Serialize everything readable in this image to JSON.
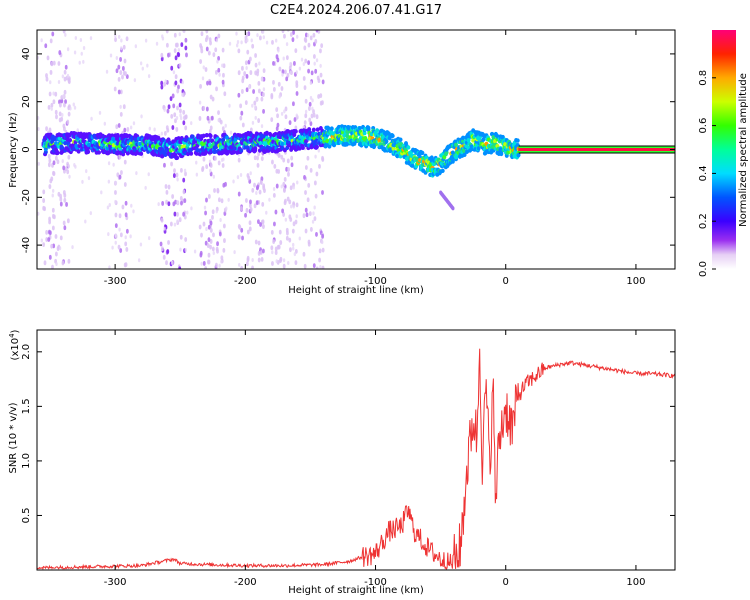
{
  "title": "C2E4.2024.206.07.41.G17",
  "chart_data": [
    {
      "type": "heatmap",
      "xlabel": "Height of straight line (km)",
      "ylabel": "Frequency (Hz)",
      "xlim": [
        -360,
        130
      ],
      "ylim": [
        -50,
        50
      ],
      "xticks": [
        -300,
        -200,
        -100,
        0,
        100
      ],
      "yticks": [
        -40,
        -20,
        0,
        20,
        40
      ],
      "colorbar": {
        "label": "Normalized spectral amplitude",
        "range": [
          0.0,
          1.0
        ],
        "ticks": [
          0.0,
          0.2,
          0.4,
          0.6,
          0.8
        ]
      },
      "ridge": {
        "x": [
          -355,
          -330,
          -300,
          -275,
          -262,
          -255,
          -250,
          -240,
          -220,
          -200,
          -180,
          -160,
          -140,
          -120,
          -100,
          -90,
          -80,
          -70,
          -60,
          -55,
          -50,
          -45,
          -40,
          -35,
          -30,
          -25,
          -20,
          -15,
          -10,
          -5,
          0,
          5,
          10
        ],
        "y": [
          2,
          3,
          2,
          2,
          1,
          0,
          1,
          2,
          2,
          3,
          3,
          4,
          5,
          6,
          5,
          3,
          0,
          -4,
          -6,
          -8,
          -6,
          -3,
          -1,
          1,
          2,
          4,
          3,
          2,
          3,
          2,
          1,
          0,
          0
        ]
      },
      "tone_line": {
        "x_start": 10,
        "x_end": 130,
        "y": 0
      },
      "tail": {
        "x": [
          -50,
          -40
        ],
        "y": [
          -18,
          -25
        ]
      }
    },
    {
      "type": "line",
      "xlabel": "Height of straight line (km)",
      "ylabel": "SNR (10 * v/v)",
      "y_exponent": "(x10",
      "y_exponent_power": "4",
      "xlim": [
        -360,
        130
      ],
      "ylim": [
        0,
        2.2
      ],
      "xticks": [
        -300,
        -200,
        -100,
        0,
        100
      ],
      "yticks": [
        0.5,
        1.0,
        1.5,
        2.0
      ],
      "ytick_labels": [
        "0.5",
        "1.0",
        "1.5",
        "2.0"
      ],
      "series": [
        {
          "color": "#ee3333",
          "x": [
            -360,
            -320,
            -280,
            -255,
            -250,
            -230,
            -200,
            -170,
            -140,
            -120,
            -110,
            -100,
            -95,
            -90,
            -80,
            -75,
            -70,
            -60,
            -50,
            -45,
            -40,
            -35,
            -32,
            -30,
            -27,
            -25,
            -22,
            -20,
            -18,
            -15,
            -12,
            -10,
            -8,
            -5,
            0,
            5,
            10,
            15,
            20,
            25,
            30,
            40,
            50,
            60,
            70,
            80,
            90,
            100,
            110,
            120,
            130
          ],
          "y": [
            0.02,
            0.03,
            0.04,
            0.1,
            0.06,
            0.05,
            0.04,
            0.04,
            0.05,
            0.08,
            0.12,
            0.15,
            0.25,
            0.35,
            0.4,
            0.55,
            0.35,
            0.2,
            0.1,
            0.06,
            0.08,
            0.2,
            0.6,
            0.9,
            1.2,
            1.4,
            1.2,
            2.1,
            1.0,
            1.7,
            0.8,
            1.9,
            0.6,
            1.2,
            1.5,
            1.3,
            1.6,
            1.7,
            1.75,
            1.8,
            1.85,
            1.88,
            1.9,
            1.88,
            1.86,
            1.84,
            1.82,
            1.8,
            1.8,
            1.79,
            1.78
          ]
        }
      ]
    }
  ]
}
